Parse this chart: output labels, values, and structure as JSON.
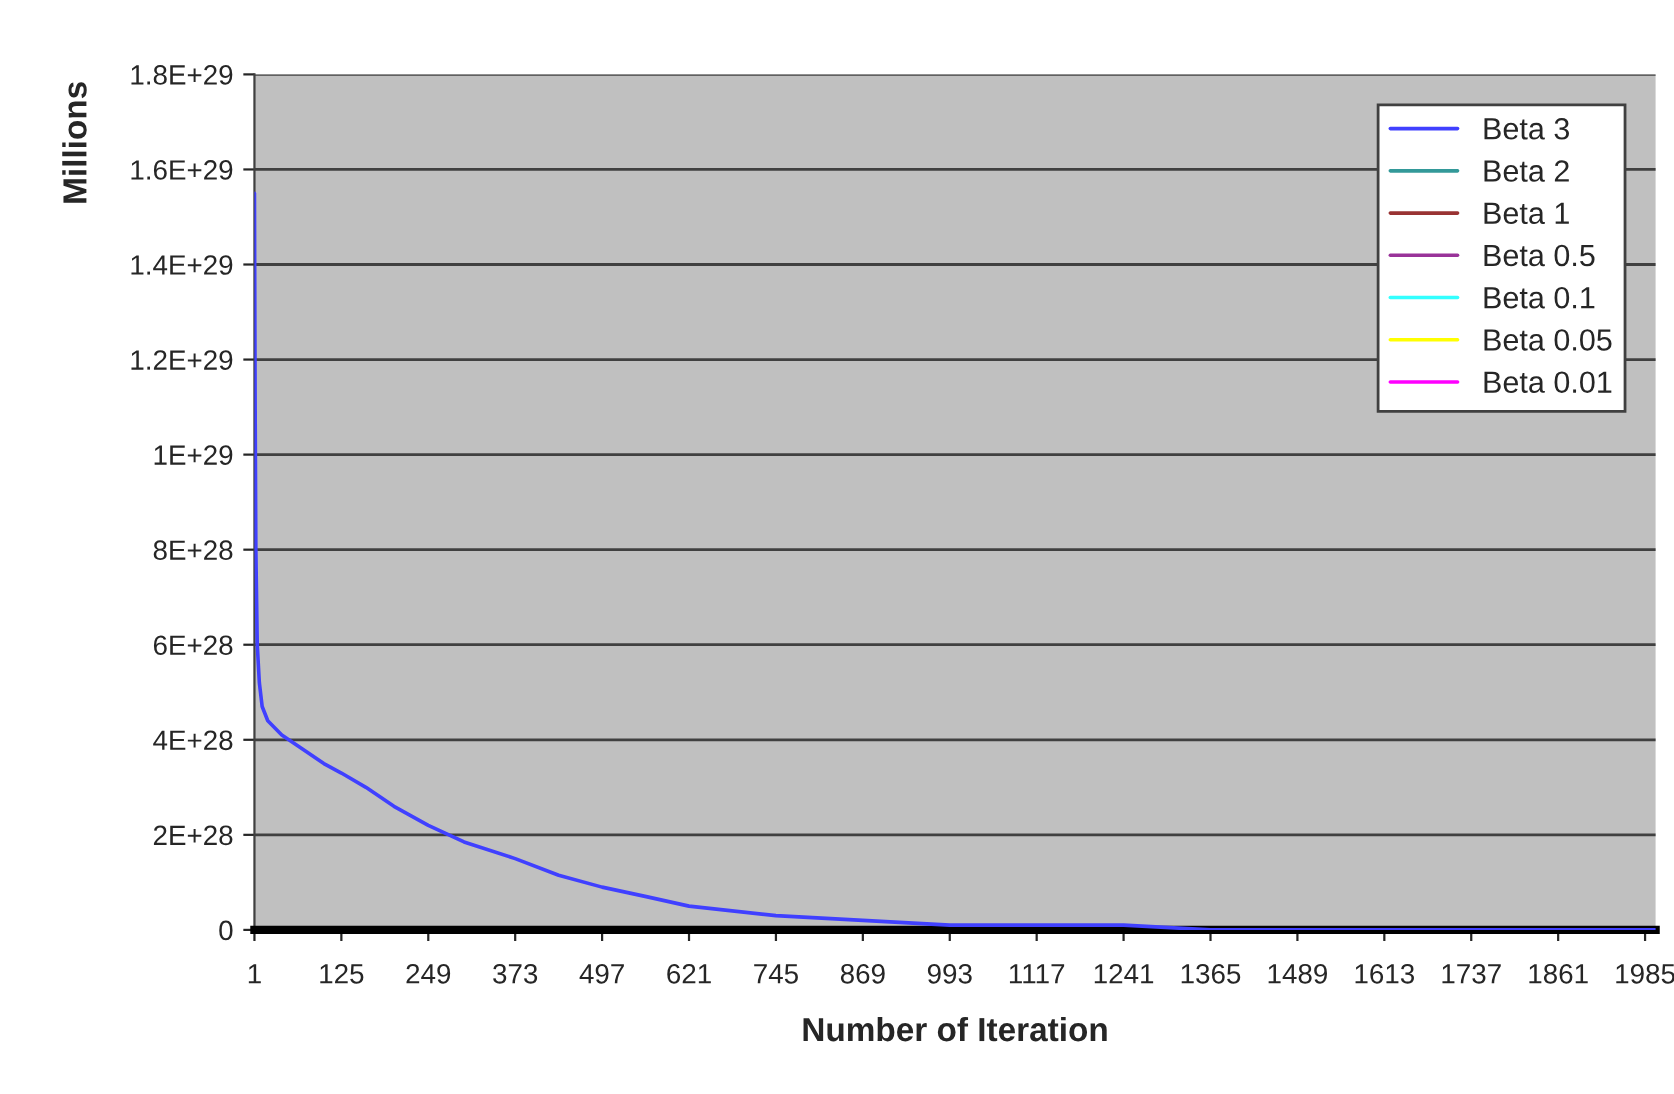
{
  "chart_data": {
    "type": "line",
    "xlabel": "Number of Iteration",
    "ylabel": "Millions",
    "xlim": [
      1,
      2000
    ],
    "xticks": [
      1,
      125,
      249,
      373,
      497,
      621,
      745,
      869,
      993,
      1117,
      1241,
      1365,
      1489,
      1613,
      1737,
      1861,
      1985
    ],
    "ylim": [
      0,
      1.8e+29
    ],
    "yticks": [
      {
        "value": 0,
        "label": "0"
      },
      {
        "value": 2e+28,
        "label": "2E+28"
      },
      {
        "value": 4e+28,
        "label": "4E+28"
      },
      {
        "value": 6e+28,
        "label": "6E+28"
      },
      {
        "value": 8e+28,
        "label": "8E+28"
      },
      {
        "value": 1e+29,
        "label": "1E+29"
      },
      {
        "value": 1.2e+29,
        "label": "1.2E+29"
      },
      {
        "value": 1.4e+29,
        "label": "1.4E+29"
      },
      {
        "value": 1.6e+29,
        "label": "1.6E+29"
      },
      {
        "value": 1.8e+29,
        "label": "1.8E+29"
      }
    ],
    "grid": "y",
    "legend": "top right",
    "marker": "none",
    "line_style": "solid",
    "series": [
      {
        "name": "Beta 3",
        "color": "#4040ff",
        "x": [
          1,
          2,
          3,
          5,
          8,
          12,
          20,
          40,
          70,
          100,
          125,
          160,
          200,
          249,
          300,
          373,
          435,
          497,
          560,
          621,
          745,
          869,
          993,
          1117,
          1241,
          1365,
          2000
        ],
        "values": [
          1.55e+29,
          1.1e+29,
          8e+28,
          6e+28,
          5.2e+28,
          4.7e+28,
          4.4e+28,
          4.1e+28,
          3.8e+28,
          3.5e+28,
          3.3e+28,
          3e+28,
          2.6e+28,
          2.2e+28,
          1.85e+28,
          1.5e+28,
          1.15e+28,
          9e+27,
          7e+27,
          5e+27,
          3e+27,
          2e+27,
          1e+27,
          1e+27,
          1e+27,
          0,
          0
        ]
      },
      {
        "name": "Beta 2",
        "color": "#339999"
      },
      {
        "name": "Beta 1",
        "color": "#993333"
      },
      {
        "name": "Beta 0.5",
        "color": "#993399"
      },
      {
        "name": "Beta 0.1",
        "color": "#33ffff"
      },
      {
        "name": "Beta 0.05",
        "color": "#ffff00"
      },
      {
        "name": "Beta 0.01",
        "color": "#ff00ff"
      }
    ]
  }
}
